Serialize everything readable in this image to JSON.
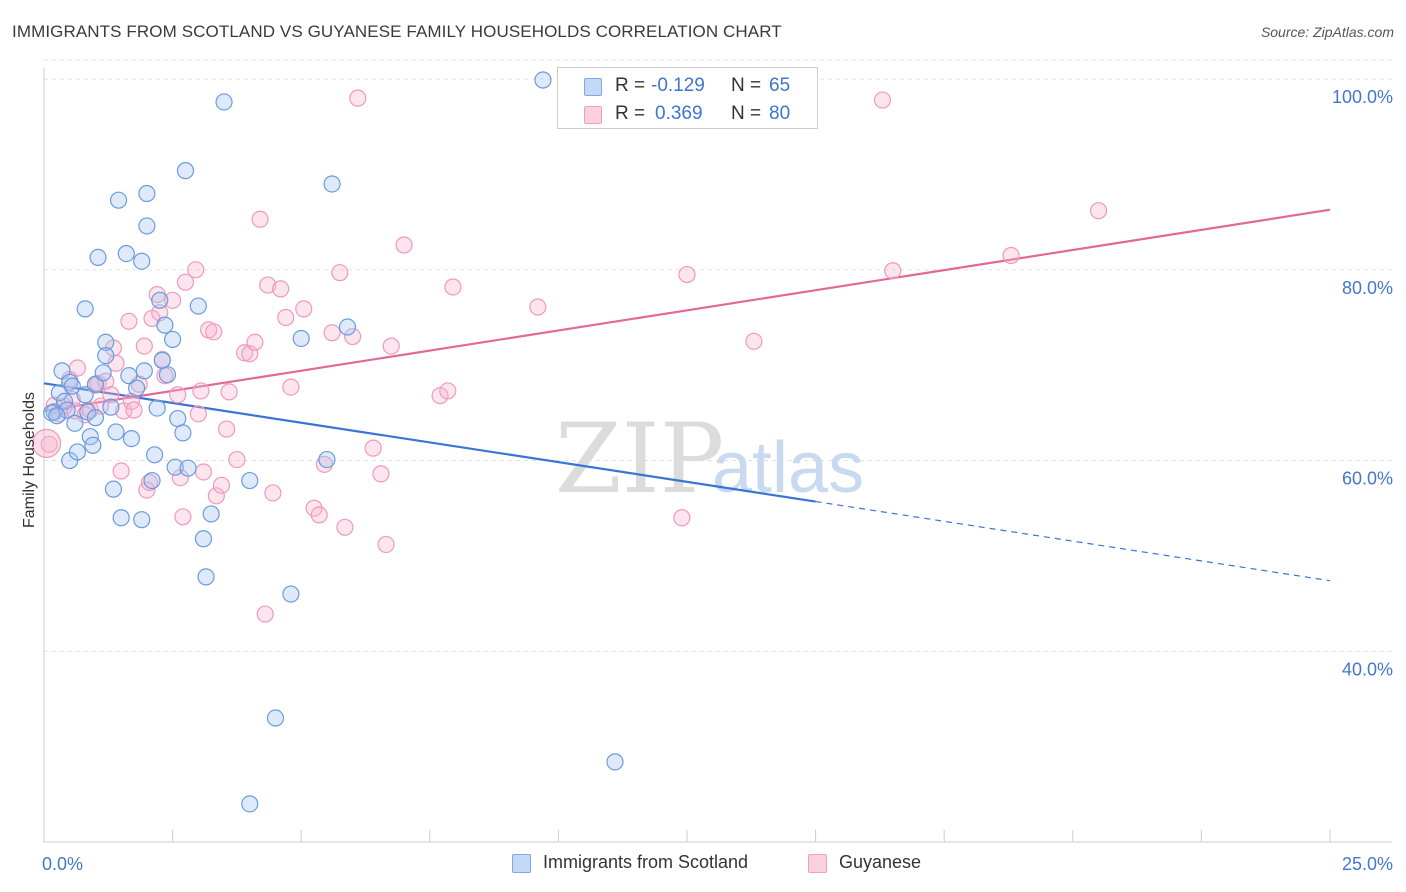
{
  "title": "IMMIGRANTS FROM SCOTLAND VS GUYANESE FAMILY HOUSEHOLDS CORRELATION CHART",
  "source": "Source: ZipAtlas.com",
  "watermark": {
    "zip": "ZIP",
    "atlas": "atlas"
  },
  "legend": {
    "r_label": "R =",
    "n_label": "N =",
    "rows": [
      {
        "r": "-0.129",
        "n": "65",
        "color": "#7fa8e8",
        "fill": "#c5d8f5"
      },
      {
        "r": "0.369",
        "n": "80",
        "color": "#f0a0bc",
        "fill": "#fad0df"
      }
    ]
  },
  "bottom_legend": [
    {
      "label": "Immigrants from Scotland",
      "color": "#7fa8e8",
      "fill": "#c5d8f5"
    },
    {
      "label": "Guyanese",
      "color": "#f0a0bc",
      "fill": "#fad0df"
    }
  ],
  "chart_data": {
    "type": "scatter",
    "ylabel": "Family Households",
    "xlabel": "",
    "xlim": [
      0,
      25
    ],
    "ylim": [
      20,
      102
    ],
    "x_ticks": [
      0,
      2.5,
      5,
      7.5,
      10,
      12.5,
      15,
      17.5,
      20,
      22.5,
      25
    ],
    "x_tick_labels": {
      "0": "0.0%",
      "25": "25.0%"
    },
    "y_ticks": [
      40,
      60,
      80,
      100
    ],
    "y_tick_labels": [
      "40.0%",
      "60.0%",
      "80.0%",
      "100.0%"
    ],
    "grid": "horizontal dashed",
    "series": [
      {
        "name": "Immigrants from Scotland",
        "color": "#6a9be0",
        "fill": "rgba(160,195,240,0.35)",
        "trend": {
          "x0": 0,
          "y0": 68.1,
          "x1": 15,
          "y1": 55.7,
          "dash_to_x": 25,
          "dash_to_y": 47.4,
          "color": "#3a74d4"
        },
        "points": [
          [
            0.2,
            65.1
          ],
          [
            0.3,
            67.1
          ],
          [
            0.35,
            69.4
          ],
          [
            0.4,
            66.2
          ],
          [
            0.45,
            65.3
          ],
          [
            0.5,
            60.0
          ],
          [
            0.5,
            68.2
          ],
          [
            0.55,
            67.8
          ],
          [
            0.6,
            63.9
          ],
          [
            0.65,
            60.9
          ],
          [
            0.8,
            66.9
          ],
          [
            0.8,
            75.9
          ],
          [
            0.85,
            65.1
          ],
          [
            0.9,
            62.5
          ],
          [
            0.95,
            61.6
          ],
          [
            1.0,
            68.0
          ],
          [
            1.0,
            64.5
          ],
          [
            1.05,
            81.3
          ],
          [
            1.15,
            69.2
          ],
          [
            1.2,
            72.4
          ],
          [
            1.2,
            71.0
          ],
          [
            1.3,
            65.6
          ],
          [
            1.35,
            57.0
          ],
          [
            1.4,
            63.0
          ],
          [
            1.45,
            87.3
          ],
          [
            1.5,
            54.0
          ],
          [
            1.6,
            81.7
          ],
          [
            1.65,
            68.9
          ],
          [
            1.7,
            62.3
          ],
          [
            1.8,
            67.6
          ],
          [
            1.9,
            53.8
          ],
          [
            1.9,
            80.9
          ],
          [
            1.95,
            69.4
          ],
          [
            2.0,
            88.0
          ],
          [
            2.0,
            84.6
          ],
          [
            2.1,
            57.9
          ],
          [
            2.15,
            60.6
          ],
          [
            2.2,
            65.5
          ],
          [
            2.25,
            76.8
          ],
          [
            2.3,
            70.5
          ],
          [
            2.35,
            74.2
          ],
          [
            2.4,
            69.0
          ],
          [
            2.5,
            72.7
          ],
          [
            2.55,
            59.3
          ],
          [
            2.6,
            64.4
          ],
          [
            2.7,
            62.9
          ],
          [
            2.75,
            90.4
          ],
          [
            2.8,
            59.2
          ],
          [
            3.0,
            76.2
          ],
          [
            3.1,
            51.8
          ],
          [
            3.15,
            47.8
          ],
          [
            3.25,
            54.4
          ],
          [
            3.5,
            97.6
          ],
          [
            4.0,
            57.9
          ],
          [
            4.0,
            24.0
          ],
          [
            4.5,
            33.0
          ],
          [
            4.8,
            46.0
          ],
          [
            5.0,
            72.8
          ],
          [
            5.5,
            60.1
          ],
          [
            5.6,
            89.0
          ],
          [
            5.9,
            74.0
          ],
          [
            9.7,
            99.9
          ],
          [
            11.1,
            28.4
          ],
          [
            0.15,
            65.0
          ],
          [
            0.25,
            64.7
          ]
        ]
      },
      {
        "name": "Guyanese",
        "color": "#f09ab8",
        "fill": "rgba(245,180,205,0.35)",
        "trend": {
          "x0": 0,
          "y0": 65.2,
          "x1": 25,
          "y1": 86.3,
          "color": "#e0699a"
        },
        "points": [
          [
            0.1,
            61.7
          ],
          [
            0.2,
            65.8
          ],
          [
            0.3,
            64.9
          ],
          [
            0.4,
            65.7
          ],
          [
            0.5,
            68.5
          ],
          [
            0.55,
            66.4
          ],
          [
            0.6,
            65.2
          ],
          [
            0.65,
            69.7
          ],
          [
            0.8,
            64.8
          ],
          [
            0.9,
            65.3
          ],
          [
            1.0,
            67.9
          ],
          [
            1.05,
            68.1
          ],
          [
            1.1,
            65.7
          ],
          [
            1.2,
            68.3
          ],
          [
            1.3,
            66.9
          ],
          [
            1.35,
            71.8
          ],
          [
            1.4,
            70.2
          ],
          [
            1.5,
            58.9
          ],
          [
            1.55,
            65.2
          ],
          [
            1.65,
            74.6
          ],
          [
            1.7,
            66.2
          ],
          [
            1.75,
            65.3
          ],
          [
            1.85,
            68.0
          ],
          [
            1.95,
            72.0
          ],
          [
            2.0,
            56.9
          ],
          [
            2.05,
            57.7
          ],
          [
            2.1,
            74.9
          ],
          [
            2.2,
            77.4
          ],
          [
            2.25,
            75.5
          ],
          [
            2.3,
            70.6
          ],
          [
            2.35,
            68.9
          ],
          [
            2.5,
            76.8
          ],
          [
            2.6,
            66.9
          ],
          [
            2.65,
            58.2
          ],
          [
            2.7,
            54.1
          ],
          [
            2.75,
            78.7
          ],
          [
            2.95,
            80.0
          ],
          [
            3.0,
            64.9
          ],
          [
            3.05,
            67.3
          ],
          [
            3.1,
            58.8
          ],
          [
            3.2,
            73.7
          ],
          [
            3.3,
            73.5
          ],
          [
            3.35,
            56.3
          ],
          [
            3.45,
            57.4
          ],
          [
            3.55,
            63.3
          ],
          [
            3.6,
            67.2
          ],
          [
            3.75,
            60.1
          ],
          [
            3.9,
            71.3
          ],
          [
            4.0,
            71.2
          ],
          [
            4.1,
            72.4
          ],
          [
            4.2,
            85.3
          ],
          [
            4.3,
            43.9
          ],
          [
            4.35,
            78.4
          ],
          [
            4.45,
            56.6
          ],
          [
            4.6,
            78.0
          ],
          [
            4.7,
            75.0
          ],
          [
            4.8,
            67.7
          ],
          [
            5.05,
            75.9
          ],
          [
            5.25,
            55.0
          ],
          [
            5.35,
            54.3
          ],
          [
            5.45,
            59.6
          ],
          [
            5.6,
            73.4
          ],
          [
            5.75,
            79.7
          ],
          [
            5.85,
            53.0
          ],
          [
            6.0,
            73.0
          ],
          [
            6.1,
            98.0
          ],
          [
            6.4,
            61.3
          ],
          [
            6.55,
            58.6
          ],
          [
            6.65,
            51.2
          ],
          [
            6.75,
            72.0
          ],
          [
            7.0,
            82.6
          ],
          [
            7.7,
            66.8
          ],
          [
            7.85,
            67.3
          ],
          [
            7.95,
            78.2
          ],
          [
            9.6,
            76.1
          ],
          [
            12.4,
            54.0
          ],
          [
            12.5,
            79.5
          ],
          [
            13.8,
            72.5
          ],
          [
            16.5,
            79.9
          ],
          [
            18.8,
            81.5
          ]
        ],
        "extra_points": [
          [
            16.3,
            97.8
          ],
          [
            20.5,
            86.2
          ]
        ]
      }
    ]
  }
}
